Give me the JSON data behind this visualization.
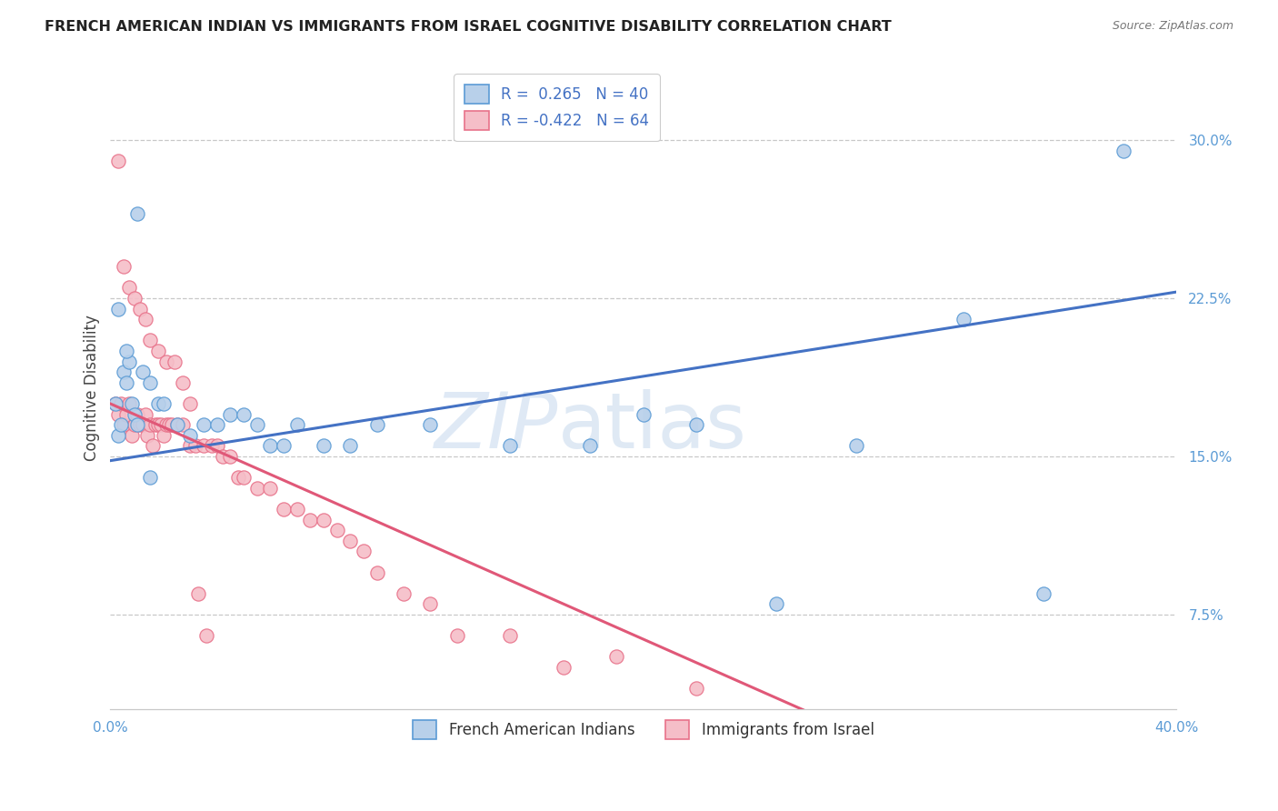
{
  "title": "FRENCH AMERICAN INDIAN VS IMMIGRANTS FROM ISRAEL COGNITIVE DISABILITY CORRELATION CHART",
  "source": "Source: ZipAtlas.com",
  "ylabel": "Cognitive Disability",
  "ytick_labels": [
    "7.5%",
    "15.0%",
    "22.5%",
    "30.0%"
  ],
  "ytick_values": [
    0.075,
    0.15,
    0.225,
    0.3
  ],
  "xlim": [
    0.0,
    0.4
  ],
  "ylim": [
    0.03,
    0.335
  ],
  "watermark_zip": "ZIP",
  "watermark_atlas": "atlas",
  "legend_blue_r": "0.265",
  "legend_blue_n": "40",
  "legend_pink_r": "-0.422",
  "legend_pink_n": "64",
  "legend_label_blue": "French American Indians",
  "legend_label_pink": "Immigrants from Israel",
  "blue_fill": "#b8d0ea",
  "pink_fill": "#f5bec8",
  "blue_edge": "#5b9bd5",
  "pink_edge": "#e8728a",
  "line_blue_color": "#4472c4",
  "line_pink_color": "#e05878",
  "blue_scatter_x": [
    0.002,
    0.003,
    0.004,
    0.005,
    0.006,
    0.007,
    0.008,
    0.009,
    0.01,
    0.012,
    0.015,
    0.018,
    0.02,
    0.025,
    0.03,
    0.035,
    0.04,
    0.045,
    0.05,
    0.055,
    0.06,
    0.065,
    0.07,
    0.08,
    0.09,
    0.1,
    0.12,
    0.15,
    0.18,
    0.2,
    0.22,
    0.25,
    0.28,
    0.32,
    0.35,
    0.38,
    0.003,
    0.006,
    0.01,
    0.015
  ],
  "blue_scatter_y": [
    0.175,
    0.16,
    0.165,
    0.19,
    0.185,
    0.195,
    0.175,
    0.17,
    0.165,
    0.19,
    0.185,
    0.175,
    0.175,
    0.165,
    0.16,
    0.165,
    0.165,
    0.17,
    0.17,
    0.165,
    0.155,
    0.155,
    0.165,
    0.155,
    0.155,
    0.165,
    0.165,
    0.155,
    0.155,
    0.17,
    0.165,
    0.08,
    0.155,
    0.215,
    0.085,
    0.295,
    0.22,
    0.2,
    0.265,
    0.14
  ],
  "pink_scatter_x": [
    0.002,
    0.003,
    0.004,
    0.005,
    0.006,
    0.007,
    0.008,
    0.009,
    0.01,
    0.011,
    0.012,
    0.013,
    0.014,
    0.015,
    0.016,
    0.017,
    0.018,
    0.019,
    0.02,
    0.021,
    0.022,
    0.023,
    0.025,
    0.027,
    0.03,
    0.032,
    0.035,
    0.038,
    0.04,
    0.042,
    0.045,
    0.048,
    0.05,
    0.055,
    0.06,
    0.065,
    0.07,
    0.075,
    0.08,
    0.085,
    0.09,
    0.095,
    0.1,
    0.11,
    0.12,
    0.13,
    0.15,
    0.17,
    0.19,
    0.22,
    0.003,
    0.005,
    0.007,
    0.009,
    0.011,
    0.013,
    0.015,
    0.018,
    0.021,
    0.024,
    0.027,
    0.03,
    0.033,
    0.036
  ],
  "pink_scatter_y": [
    0.175,
    0.17,
    0.175,
    0.165,
    0.17,
    0.175,
    0.16,
    0.165,
    0.17,
    0.165,
    0.165,
    0.17,
    0.16,
    0.165,
    0.155,
    0.165,
    0.165,
    0.165,
    0.16,
    0.165,
    0.165,
    0.165,
    0.165,
    0.165,
    0.155,
    0.155,
    0.155,
    0.155,
    0.155,
    0.15,
    0.15,
    0.14,
    0.14,
    0.135,
    0.135,
    0.125,
    0.125,
    0.12,
    0.12,
    0.115,
    0.11,
    0.105,
    0.095,
    0.085,
    0.08,
    0.065,
    0.065,
    0.05,
    0.055,
    0.04,
    0.29,
    0.24,
    0.23,
    0.225,
    0.22,
    0.215,
    0.205,
    0.2,
    0.195,
    0.195,
    0.185,
    0.175,
    0.085,
    0.065
  ],
  "blue_line_x": [
    0.0,
    0.4
  ],
  "blue_line_y": [
    0.148,
    0.228
  ],
  "pink_line_x": [
    0.0,
    0.265
  ],
  "pink_line_y": [
    0.175,
    0.027
  ]
}
